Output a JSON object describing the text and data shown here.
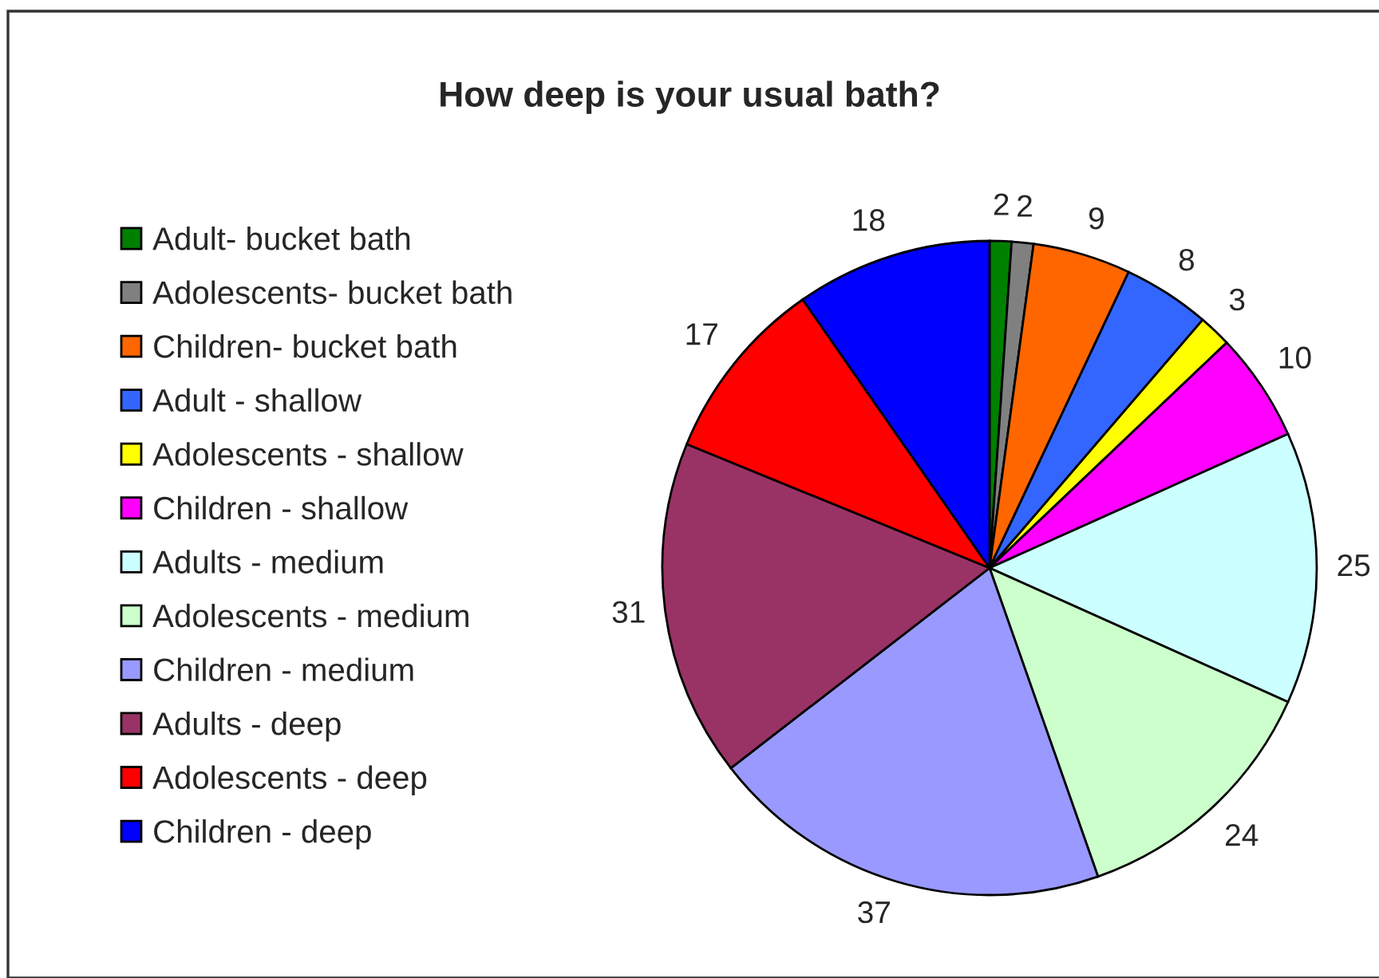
{
  "chart_data": {
    "type": "pie",
    "title": "How deep is your usual bath?",
    "categories": [
      "Adult- bucket bath",
      "Adolescents- bucket bath",
      "Children- bucket bath",
      "Adult - shallow",
      "Adolescents - shallow",
      "Children - shallow",
      "Adults - medium",
      "Adolescents - medium",
      "Children - medium",
      "Adults - deep",
      "Adolescents - deep",
      "Children - deep"
    ],
    "values": [
      2,
      2,
      9,
      8,
      3,
      10,
      25,
      24,
      37,
      31,
      17,
      18
    ],
    "colors": [
      "#008000",
      "#808080",
      "#ff6600",
      "#3366ff",
      "#ffff00",
      "#ff00ff",
      "#ccffff",
      "#ccffcc",
      "#9999ff",
      "#993366",
      "#ff0000",
      "#0000ff"
    ],
    "data_labels": true,
    "legend": "left"
  }
}
